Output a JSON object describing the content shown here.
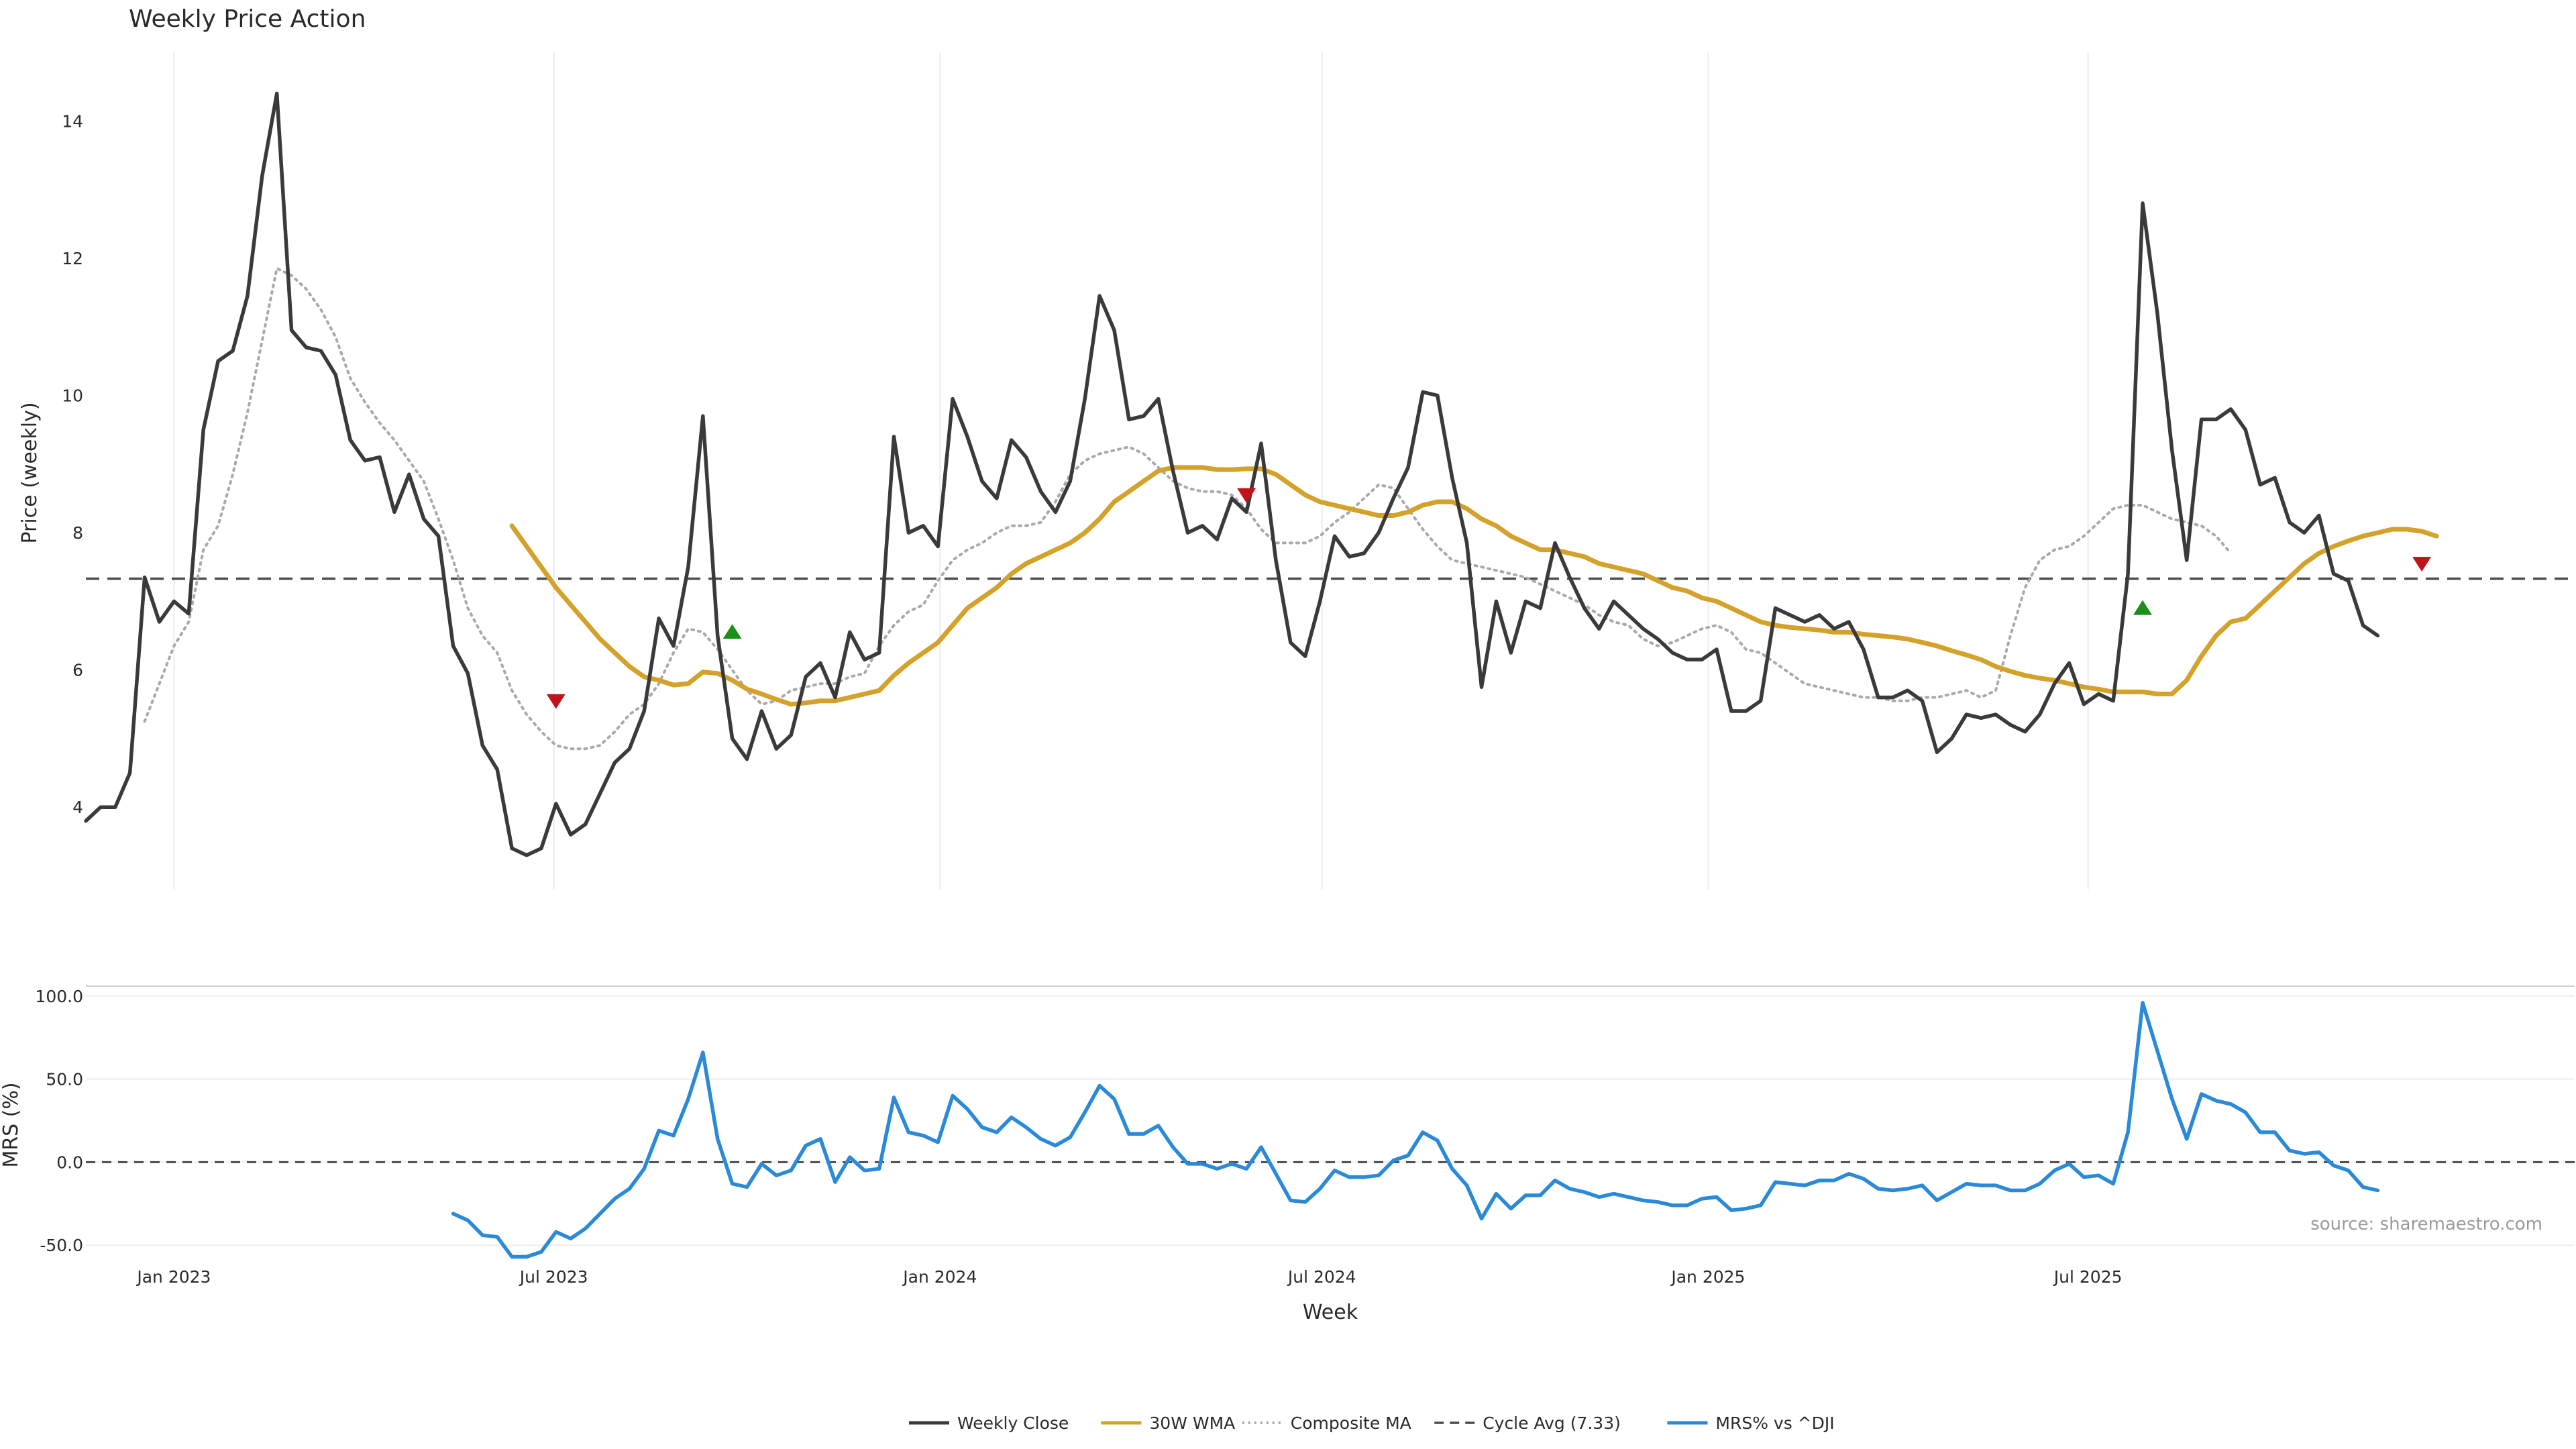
{
  "chart_data": {
    "type": "line",
    "title": "Weekly Price Action",
    "xlabel": "Week",
    "x_start": "2022-11-20",
    "x_step_days": 7,
    "x_ticks": [
      {
        "label": "Jan 2023",
        "date": "2023-01-01"
      },
      {
        "label": "Jul 2023",
        "date": "2023-07-01"
      },
      {
        "label": "Jan 2024",
        "date": "2024-01-01"
      },
      {
        "label": "Jul 2024",
        "date": "2024-07-01"
      },
      {
        "label": "Jan 2025",
        "date": "2025-01-01"
      },
      {
        "label": "Jul 2025",
        "date": "2025-07-01"
      }
    ],
    "price_panel": {
      "ylabel": "Price (weekly)",
      "ylim": [
        2.8,
        15.0
      ],
      "y_ticks": [
        4,
        6,
        8,
        10,
        12,
        14
      ],
      "cycle_avg": 7.33,
      "series": [
        {
          "name": "Weekly Close",
          "color": "#3a3a3a",
          "style": "solid",
          "start_index": 0,
          "values": [
            3.8,
            4.0,
            4.0,
            4.5,
            7.35,
            6.7,
            7.0,
            6.82,
            9.5,
            10.5,
            10.65,
            11.45,
            13.2,
            14.4,
            10.95,
            10.7,
            10.65,
            10.3,
            9.35,
            9.05,
            9.1,
            8.3,
            8.85,
            8.2,
            7.95,
            6.35,
            5.95,
            4.9,
            4.55,
            3.4,
            3.3,
            3.4,
            4.05,
            3.6,
            3.75,
            4.2,
            4.65,
            4.85,
            5.4,
            6.75,
            6.35,
            7.5,
            9.7,
            6.5,
            5.0,
            4.7,
            5.4,
            4.85,
            5.05,
            5.9,
            6.1,
            5.6,
            6.55,
            6.15,
            6.25,
            9.4,
            8.0,
            8.1,
            7.8,
            9.95,
            9.4,
            8.75,
            8.5,
            9.35,
            9.1,
            8.6,
            8.3,
            8.75,
            9.95,
            11.45,
            10.95,
            9.65,
            9.7,
            9.95,
            8.9,
            8.0,
            8.1,
            7.9,
            8.5,
            8.3,
            9.3,
            7.6,
            6.4,
            6.2,
            7.0,
            7.95,
            7.65,
            7.7,
            8.0,
            8.5,
            8.95,
            10.05,
            10.0,
            8.8,
            7.85,
            5.75,
            7.0,
            6.25,
            7.0,
            6.9,
            7.85,
            7.35,
            6.9,
            6.6,
            7.0,
            6.8,
            6.6,
            6.45,
            6.25,
            6.15,
            6.15,
            6.3,
            5.4,
            5.4,
            5.55,
            6.9,
            6.8,
            6.7,
            6.8,
            6.6,
            6.7,
            6.3,
            5.6,
            5.6,
            5.7,
            5.55,
            4.8,
            5.0,
            5.35,
            5.3,
            5.35,
            5.2,
            5.1,
            5.35,
            5.8,
            6.1,
            5.5,
            5.65,
            5.55,
            7.4,
            12.8,
            11.2,
            9.2,
            7.6,
            9.65,
            9.65,
            9.8,
            9.5,
            8.7,
            8.8,
            8.15,
            8.0,
            8.25,
            7.4,
            7.3,
            6.65,
            6.5
          ]
        },
        {
          "name": "30W WMA",
          "color": "#d4a22a",
          "style": "solid",
          "start_index": 29,
          "values": [
            8.1,
            7.8,
            7.5,
            7.2,
            6.95,
            6.7,
            6.45,
            6.25,
            6.05,
            5.9,
            5.85,
            5.78,
            5.8,
            5.97,
            5.95,
            5.85,
            5.72,
            5.65,
            5.57,
            5.5,
            5.52,
            5.55,
            5.55,
            5.6,
            5.65,
            5.7,
            5.92,
            6.1,
            6.25,
            6.4,
            6.65,
            6.9,
            7.05,
            7.2,
            7.4,
            7.55,
            7.65,
            7.75,
            7.85,
            8.0,
            8.2,
            8.45,
            8.6,
            8.75,
            8.9,
            8.95,
            8.95,
            8.95,
            8.92,
            8.92,
            8.93,
            8.93,
            8.85,
            8.7,
            8.55,
            8.45,
            8.4,
            8.35,
            8.3,
            8.25,
            8.25,
            8.3,
            8.4,
            8.45,
            8.45,
            8.35,
            8.2,
            8.1,
            7.95,
            7.85,
            7.75,
            7.75,
            7.7,
            7.65,
            7.55,
            7.5,
            7.45,
            7.4,
            7.3,
            7.2,
            7.15,
            7.05,
            7.0,
            6.9,
            6.8,
            6.7,
            6.65,
            6.62,
            6.6,
            6.58,
            6.55,
            6.55,
            6.52,
            6.5,
            6.48,
            6.45,
            6.4,
            6.35,
            6.28,
            6.22,
            6.15,
            6.05,
            5.98,
            5.92,
            5.88,
            5.85,
            5.8,
            5.75,
            5.72,
            5.68,
            5.68,
            5.68,
            5.65,
            5.65,
            5.85,
            6.2,
            6.5,
            6.7,
            6.75,
            6.95,
            7.15,
            7.35,
            7.55,
            7.7,
            7.8,
            7.88,
            7.95,
            8.0,
            8.05,
            8.05,
            8.02,
            7.95
          ]
        },
        {
          "name": "Composite MA",
          "color": "#a9a9a9",
          "style": "dotted",
          "start_index": 4,
          "values": [
            5.25,
            5.8,
            6.35,
            6.7,
            7.75,
            8.1,
            8.85,
            9.75,
            10.8,
            11.85,
            11.75,
            11.55,
            11.25,
            10.85,
            10.25,
            9.9,
            9.6,
            9.35,
            9.05,
            8.75,
            8.2,
            7.6,
            6.9,
            6.5,
            6.25,
            5.7,
            5.35,
            5.1,
            4.9,
            4.85,
            4.85,
            4.9,
            5.1,
            5.35,
            5.5,
            5.8,
            6.25,
            6.6,
            6.55,
            6.3,
            6.0,
            5.7,
            5.5,
            5.55,
            5.7,
            5.75,
            5.8,
            5.8,
            5.9,
            5.95,
            6.35,
            6.65,
            6.85,
            6.95,
            7.3,
            7.6,
            7.75,
            7.85,
            8.0,
            8.1,
            8.1,
            8.15,
            8.45,
            8.85,
            9.05,
            9.15,
            9.2,
            9.25,
            9.15,
            8.95,
            8.75,
            8.65,
            8.6,
            8.6,
            8.55,
            8.35,
            8.05,
            7.85,
            7.85,
            7.85,
            7.95,
            8.15,
            8.3,
            8.5,
            8.7,
            8.65,
            8.35,
            8.05,
            7.8,
            7.6,
            7.55,
            7.5,
            7.45,
            7.4,
            7.35,
            7.25,
            7.15,
            7.05,
            6.95,
            6.8,
            6.7,
            6.65,
            6.45,
            6.35,
            6.4,
            6.5,
            6.6,
            6.65,
            6.55,
            6.3,
            6.25,
            6.1,
            5.95,
            5.8,
            5.75,
            5.7,
            5.65,
            5.6,
            5.6,
            5.55,
            5.55,
            5.6,
            5.6,
            5.65,
            5.7,
            5.6,
            5.7,
            6.5,
            7.2,
            7.6,
            7.75,
            7.8,
            7.95,
            8.15,
            8.35,
            8.4,
            8.4,
            8.3,
            8.2,
            8.15,
            8.1,
            7.95,
            7.7
          ]
        }
      ],
      "signals": [
        {
          "index": 32,
          "value": 5.55,
          "type": "sell",
          "color": "#c0131a"
        },
        {
          "index": 44,
          "value": 6.55,
          "type": "buy",
          "color": "#1a8f1a"
        },
        {
          "index": 79,
          "value": 8.55,
          "type": "sell",
          "color": "#c0131a"
        },
        {
          "index": 140,
          "value": 6.9,
          "type": "buy",
          "color": "#1a8f1a"
        },
        {
          "index": 159,
          "value": 7.55,
          "type": "sell",
          "color": "#c0131a"
        }
      ]
    },
    "mrs_panel": {
      "ylabel": "MRS (%)",
      "ylim": [
        -58,
        106
      ],
      "y_ticks": [
        {
          "label": "100.0",
          "value": 100
        },
        {
          "label": "50.0",
          "value": 50
        },
        {
          "label": "0.0",
          "value": 0
        },
        {
          "label": "-50.0",
          "value": -50
        }
      ],
      "zero_line": 0,
      "series": [
        {
          "name": "MRS% vs ^DJI",
          "color": "#2a8ad8",
          "style": "solid",
          "start_index": 25,
          "values": [
            -31,
            -35,
            -44,
            -45,
            -57,
            -57,
            -54,
            -42,
            -46,
            -40,
            -31,
            -22,
            -16,
            -4,
            19,
            16,
            38,
            66,
            14,
            -13,
            -15,
            -1,
            -8,
            -5,
            10,
            14,
            -12,
            3,
            -5,
            -4,
            39,
            18,
            16,
            12,
            40,
            32,
            21,
            18,
            27,
            21,
            14,
            10,
            15,
            30,
            46,
            38,
            17,
            17,
            22,
            9,
            -1,
            -1,
            -4,
            -1,
            -4,
            9,
            -7,
            -23,
            -24,
            -16,
            -5,
            -9,
            -9,
            -8,
            1,
            4,
            18,
            13,
            -4,
            -14,
            -34,
            -19,
            -28,
            -20,
            -20,
            -11,
            -16,
            -18,
            -21,
            -19,
            -21,
            -23,
            -24,
            -26,
            -26,
            -22,
            -21,
            -29,
            -28,
            -26,
            -12,
            -13,
            -14,
            -11,
            -11,
            -7,
            -10,
            -16,
            -17,
            -16,
            -14,
            -23,
            -18,
            -13,
            -14,
            -14,
            -17,
            -17,
            -13,
            -5,
            -1,
            -9,
            -8,
            -13,
            18,
            96,
            67,
            38,
            14,
            41,
            37,
            35,
            30,
            18,
            18,
            7,
            5,
            6,
            -2,
            -5,
            -15,
            -17
          ]
        }
      ]
    },
    "legend": {
      "placement": "bottom-center",
      "entries": [
        {
          "label": "Weekly Close",
          "color": "#3a3a3a",
          "style": "solid"
        },
        {
          "label": "30W WMA",
          "color": "#d4a22a",
          "style": "solid"
        },
        {
          "label": "Composite MA",
          "color": "#a9a9a9",
          "style": "dotted"
        },
        {
          "label": "Cycle Avg (7.33)",
          "color": "#4a4a4a",
          "style": "dashed"
        },
        {
          "label": "MRS% vs ^DJI",
          "color": "#2a8ad8",
          "style": "solid"
        }
      ]
    },
    "source": "source: sharemaestro.com",
    "grid": true
  }
}
